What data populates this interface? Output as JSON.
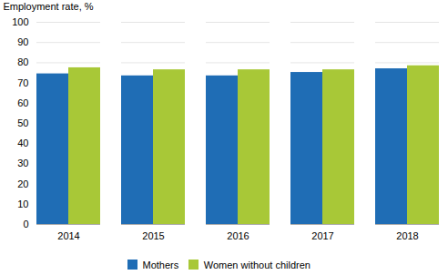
{
  "chart_data": {
    "type": "bar",
    "ylabel": "Employment rate, %",
    "categories": [
      "2014",
      "2015",
      "2016",
      "2017",
      "2018"
    ],
    "series": [
      {
        "name": "Mothers",
        "color": "#1f6db5",
        "values": [
          74.5,
          73.5,
          73.5,
          75.2,
          77.0
        ]
      },
      {
        "name": "Women without children",
        "color": "#a8c837",
        "values": [
          77.5,
          76.5,
          76.5,
          76.5,
          78.5
        ]
      }
    ],
    "ylim": [
      0,
      100
    ],
    "yticks": [
      0,
      10,
      20,
      30,
      40,
      50,
      60,
      70,
      80,
      90,
      100
    ],
    "grid": true,
    "legend": "bottom"
  }
}
